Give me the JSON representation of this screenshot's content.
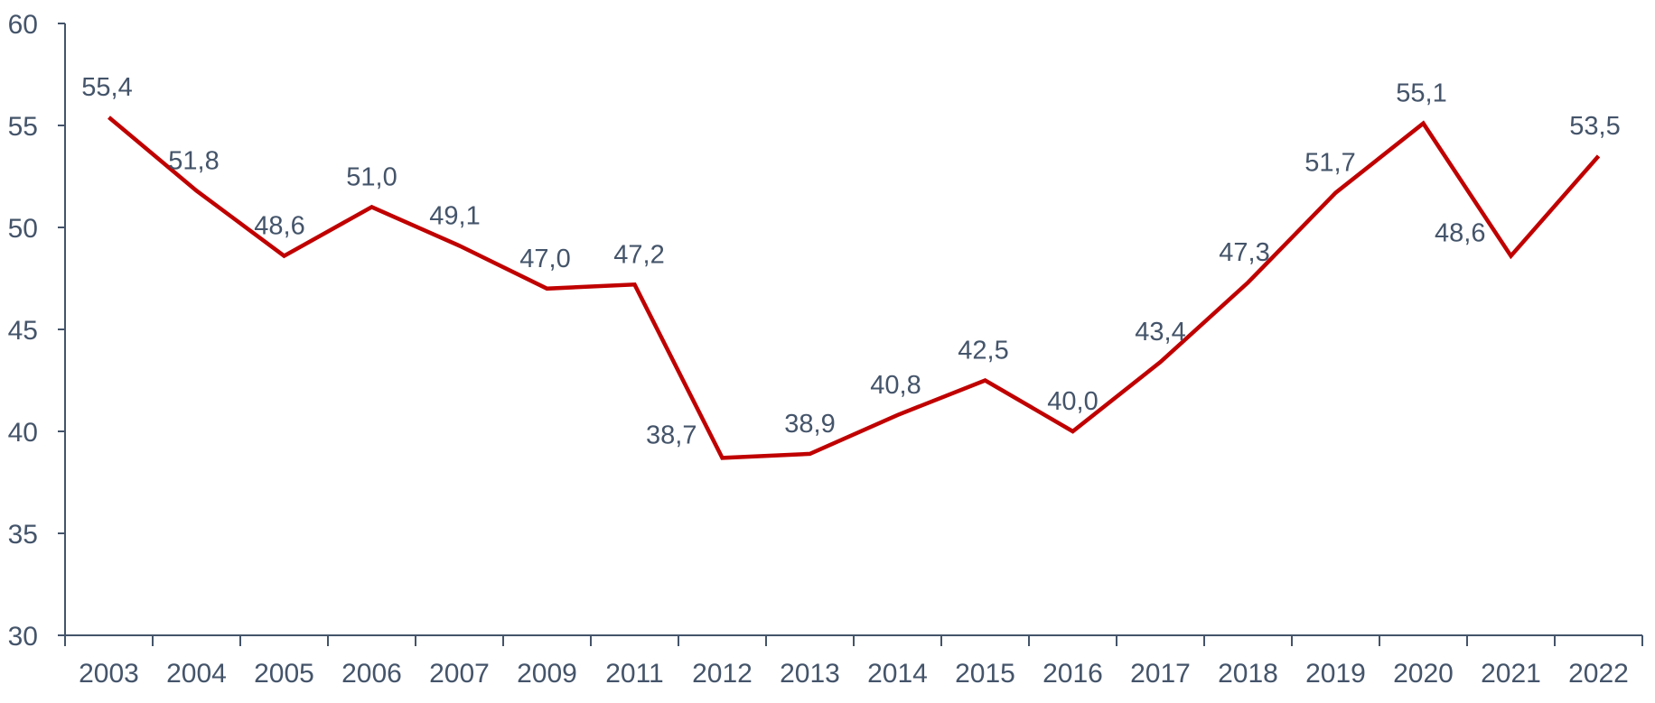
{
  "chart_data": {
    "type": "line",
    "categories": [
      "2003",
      "2004",
      "2005",
      "2006",
      "2007",
      "2009",
      "2011",
      "2012",
      "2013",
      "2014",
      "2015",
      "2016",
      "2017",
      "2018",
      "2019",
      "2020",
      "2021",
      "2022"
    ],
    "series": [
      {
        "values": [
          55.4,
          51.8,
          48.6,
          51.0,
          49.1,
          47.0,
          47.2,
          38.7,
          38.9,
          40.8,
          42.5,
          40.0,
          43.4,
          47.3,
          51.7,
          55.1,
          48.6,
          53.5
        ],
        "labels": [
          "55,4",
          "51,8",
          "48,6",
          "51,0",
          "49,1",
          "47,0",
          "47,2",
          "38,7",
          "38,9",
          "40,8",
          "42,5",
          "40,0",
          "43,4",
          "47,3",
          "51,7",
          "55,1",
          "48,6",
          "53,5"
        ],
        "color": "#C00000"
      }
    ],
    "ylim": [
      30,
      60
    ],
    "yticks": [
      "30",
      "35",
      "40",
      "45",
      "50",
      "55",
      "60"
    ],
    "ytick_values": [
      30,
      35,
      40,
      45,
      50,
      55,
      60
    ],
    "grid": false,
    "legend": "none"
  }
}
